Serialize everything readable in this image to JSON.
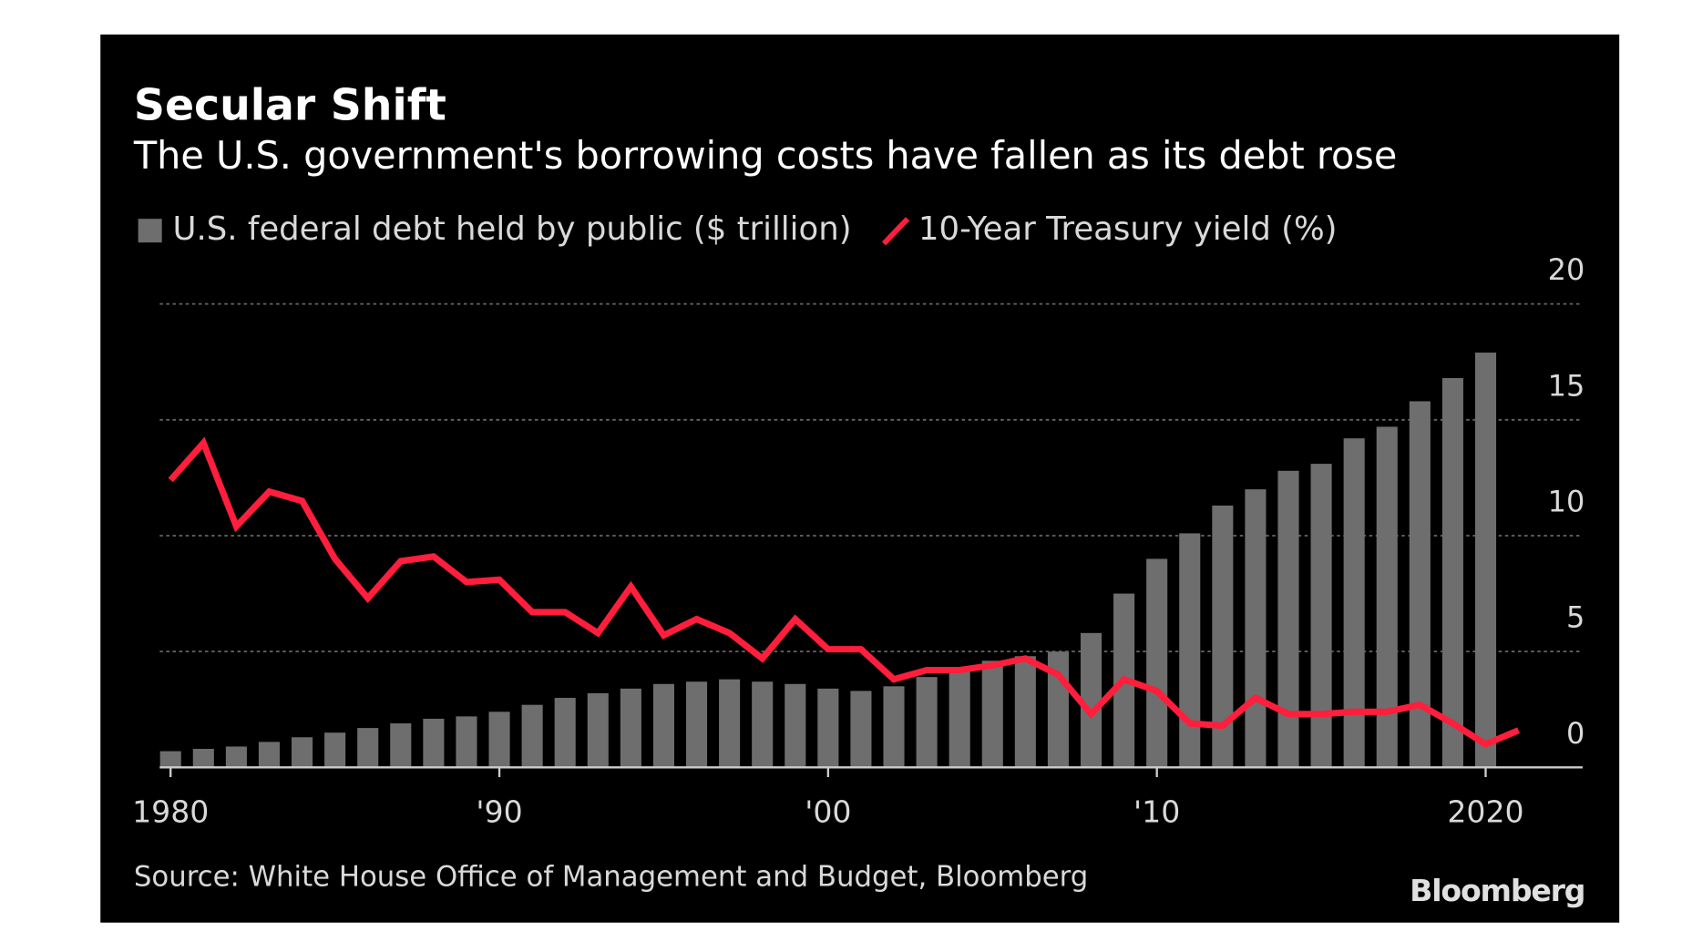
{
  "chart_data": {
    "type": "bar_line",
    "title": "Secular Shift",
    "subtitle": "The U.S. government's borrowing costs have fallen as its debt rose",
    "source": "Source: White House Office of Management and Budget, Bloomberg",
    "brand": "Bloomberg",
    "x": [
      1980,
      1981,
      1982,
      1983,
      1984,
      1985,
      1986,
      1987,
      1988,
      1989,
      1990,
      1991,
      1992,
      1993,
      1994,
      1995,
      1996,
      1997,
      1998,
      1999,
      2000,
      2001,
      2002,
      2003,
      2004,
      2005,
      2006,
      2007,
      2008,
      2009,
      2010,
      2011,
      2012,
      2013,
      2014,
      2015,
      2016,
      2017,
      2018,
      2019,
      2020,
      2021
    ],
    "series": [
      {
        "name": "U.S. federal debt held by public ($ trillion)",
        "type": "bar",
        "color": "#6e6e6e",
        "values": [
          0.7,
          0.8,
          0.9,
          1.1,
          1.3,
          1.5,
          1.7,
          1.9,
          2.1,
          2.2,
          2.4,
          2.7,
          3.0,
          3.2,
          3.4,
          3.6,
          3.7,
          3.8,
          3.7,
          3.6,
          3.4,
          3.3,
          3.5,
          3.9,
          4.3,
          4.6,
          4.8,
          5.0,
          5.8,
          7.5,
          9.0,
          10.1,
          11.3,
          12.0,
          12.8,
          13.1,
          14.2,
          14.7,
          15.8,
          16.8,
          17.9,
          null
        ]
      },
      {
        "name": "10-Year Treasury yield (%)",
        "type": "line",
        "color": "#ff1e3c",
        "values": [
          12.4,
          14.0,
          10.4,
          11.9,
          11.5,
          9.0,
          7.3,
          8.9,
          9.1,
          8.0,
          8.1,
          6.7,
          6.7,
          5.8,
          7.8,
          5.7,
          6.4,
          5.8,
          4.7,
          6.4,
          5.1,
          5.1,
          3.8,
          4.2,
          4.2,
          4.4,
          4.7,
          4.0,
          2.3,
          3.8,
          3.3,
          1.9,
          1.8,
          3.0,
          2.3,
          2.3,
          2.4,
          2.4,
          2.7,
          1.9,
          1.0,
          1.6
        ]
      }
    ],
    "xlim": [
      1979.67,
      2022.95
    ],
    "xticks": [
      {
        "value": 1980,
        "label": "1980"
      },
      {
        "value": 1990,
        "label": "'90"
      },
      {
        "value": 2000,
        "label": "'00"
      },
      {
        "value": 2010,
        "label": "'10"
      },
      {
        "value": 2020,
        "label": "2020"
      }
    ],
    "ylim": [
      0,
      20
    ],
    "yticks": [
      0,
      5,
      10,
      15,
      20
    ],
    "grid": true
  }
}
